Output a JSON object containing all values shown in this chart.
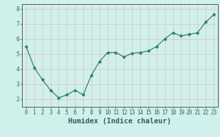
{
  "x": [
    0,
    1,
    2,
    3,
    4,
    5,
    6,
    7,
    8,
    9,
    10,
    11,
    12,
    13,
    14,
    15,
    16,
    17,
    18,
    19,
    20,
    21,
    22,
    23
  ],
  "y": [
    5.5,
    4.1,
    3.3,
    2.6,
    2.1,
    2.3,
    2.6,
    2.3,
    3.6,
    4.5,
    5.1,
    5.1,
    4.8,
    5.05,
    5.1,
    5.2,
    5.5,
    6.0,
    6.4,
    6.2,
    6.3,
    6.4,
    7.1,
    7.6
  ],
  "line_color": "#2d7d6f",
  "marker": "D",
  "marker_size": 2.5,
  "bg_color": "#cff0eb",
  "grid_color": "#e0c8c8",
  "xlabel": "Humidex (Indice chaleur)",
  "xlabel_fontsize": 7.5,
  "xlim": [
    -0.5,
    23.5
  ],
  "ylim": [
    1.5,
    8.3
  ],
  "yticks": [
    2,
    3,
    4,
    5,
    6,
    7,
    8
  ],
  "xticks": [
    0,
    1,
    2,
    3,
    4,
    5,
    6,
    7,
    8,
    9,
    10,
    11,
    12,
    13,
    14,
    15,
    16,
    17,
    18,
    19,
    20,
    21,
    22,
    23
  ],
  "tick_fontsize": 5.5,
  "spine_color": "#555555",
  "tick_color": "#2d6060"
}
